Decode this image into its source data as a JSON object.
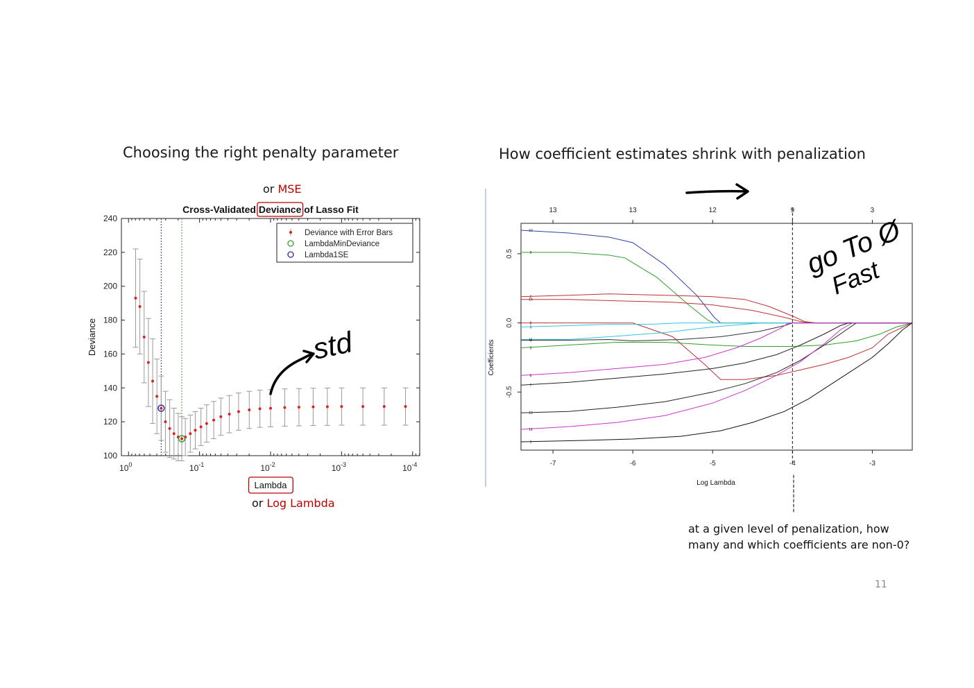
{
  "slide": {
    "left_heading": "Choosing the right penalty parameter",
    "right_heading": "How coefficient estimates shrink with penalization",
    "or_mse_prefix": "or ",
    "or_mse_word": "MSE",
    "or_loglambda_prefix": "or ",
    "or_loglambda_word": "Log Lambda",
    "note_line1": "at a given level of penalization, how",
    "note_line2": "many and which coefficients are non-0?",
    "page_number": "11",
    "handwriting": {
      "left": "std",
      "right_line1": "go To Ø",
      "right_line2": "Fast"
    },
    "colors": {
      "accent_red": "#c00000",
      "error_bar": "#999999",
      "points": "#e02020",
      "lambda_min_line": "#2e9e2e",
      "lambda_1se_line": "#2a2aa8"
    }
  },
  "chart_data": [
    {
      "type": "line",
      "title": "Cross-Validated Deviance of Lasso Fit",
      "title_parts": [
        "Cross-Validated ",
        "Deviance",
        " of Lasso Fit"
      ],
      "xlabel": "Lambda",
      "ylabel": "Deviance",
      "x_scale": "log-reversed",
      "xlim_log10": [
        0.1,
        -4.1
      ],
      "ylim": [
        100,
        240
      ],
      "yticks": [
        100,
        120,
        140,
        160,
        180,
        200,
        220,
        240
      ],
      "xticks": [
        {
          "exp": 0,
          "base": "10",
          "sup": "0"
        },
        {
          "exp": -1,
          "base": "10",
          "sup": "-1"
        },
        {
          "exp": -2,
          "base": "10",
          "sup": "-2"
        },
        {
          "exp": -3,
          "base": "10",
          "sup": "-3"
        },
        {
          "exp": -4,
          "base": "10",
          "sup": "-4"
        }
      ],
      "legend": [
        "Deviance with Error Bars",
        "LambdaMinDeviance",
        "Lambda1SE"
      ],
      "legend_position": "top-right",
      "lambda_min_log10": -0.75,
      "lambda_1se_log10": -0.46,
      "series": [
        {
          "name": "Deviance with Error Bars",
          "x_log10": [
            -0.1,
            -0.16,
            -0.22,
            -0.28,
            -0.34,
            -0.4,
            -0.46,
            -0.52,
            -0.58,
            -0.64,
            -0.7,
            -0.75,
            -0.8,
            -0.87,
            -0.94,
            -1.02,
            -1.1,
            -1.2,
            -1.3,
            -1.42,
            -1.55,
            -1.7,
            -1.85,
            -2.0,
            -2.2,
            -2.4,
            -2.6,
            -2.8,
            -3.0,
            -3.3,
            -3.6,
            -3.9
          ],
          "values": [
            193,
            188,
            170,
            155,
            144,
            135,
            128,
            120,
            116,
            113,
            111,
            110,
            111,
            113,
            115,
            117,
            119,
            121,
            123,
            124.5,
            126,
            127,
            127.7,
            128,
            128.4,
            128.6,
            128.8,
            128.9,
            129,
            129,
            129,
            129
          ],
          "error": [
            29,
            28,
            27,
            26,
            25,
            22,
            19,
            18,
            17,
            15,
            14,
            13,
            11,
            11,
            11,
            11,
            11,
            11,
            11,
            11,
            11,
            11,
            11,
            11,
            11,
            11,
            11,
            11,
            11,
            11,
            11,
            11
          ]
        }
      ]
    },
    {
      "type": "line",
      "title": "",
      "xlabel": "Log Lambda",
      "ylabel": "Coefficients",
      "xlim": [
        -7.4,
        -2.5
      ],
      "ylim": [
        -0.92,
        0.72
      ],
      "xticks": [
        -7,
        -6,
        -5,
        -4,
        -3
      ],
      "yticks": [
        -0.5,
        0.0,
        0.5
      ],
      "top_axis_ticks": [
        {
          "x": -7,
          "label": "13"
        },
        {
          "x": -6,
          "label": "13"
        },
        {
          "x": -5,
          "label": "12"
        },
        {
          "x": -4,
          "label": "9"
        },
        {
          "x": -3,
          "label": "3"
        }
      ],
      "vline_x": -4,
      "series": [
        {
          "label": "10",
          "color": "#2a3fa8",
          "x": [
            -7.4,
            -6.8,
            -6.3,
            -6.0,
            -5.6,
            -5.2,
            -4.98,
            -4.9,
            -2.5
          ],
          "values": [
            0.67,
            0.65,
            0.62,
            0.58,
            0.42,
            0.2,
            0.04,
            0.0,
            0.0
          ]
        },
        {
          "label": "9",
          "color": "#2aa02a",
          "x": [
            -7.4,
            -6.8,
            -6.3,
            -6.1,
            -5.7,
            -5.3,
            -5.06,
            -4.98,
            -2.5
          ],
          "values": [
            0.51,
            0.51,
            0.49,
            0.47,
            0.33,
            0.13,
            0.02,
            0.0,
            0.0
          ]
        },
        {
          "label": "2",
          "color": "#c03030",
          "x": [
            -7.4,
            -6.8,
            -6.3,
            -5.6,
            -5.0,
            -4.6,
            -4.3,
            -4.0,
            -3.85,
            -3.7,
            -2.5
          ],
          "values": [
            0.19,
            0.2,
            0.21,
            0.2,
            0.19,
            0.17,
            0.12,
            0.05,
            0.01,
            0.0,
            0.0
          ]
        },
        {
          "label": "14",
          "color": "#c03030",
          "x": [
            -7.4,
            -6.8,
            -6.2,
            -5.5,
            -5.0,
            -4.5,
            -4.1,
            -3.9,
            -3.75,
            -2.5
          ],
          "values": [
            0.17,
            0.17,
            0.16,
            0.15,
            0.13,
            0.09,
            0.04,
            0.01,
            0.0,
            0.0
          ]
        },
        {
          "label": "8",
          "color": "#c03030",
          "x": [
            -7.4,
            -6.6,
            -6.0,
            -5.5,
            -5.1,
            -4.9,
            -4.6,
            -4.2,
            -3.9,
            -3.6,
            -3.3,
            -3.0,
            -2.8,
            -2.5
          ],
          "values": [
            0.0,
            0.0,
            0.0,
            -0.1,
            -0.3,
            -0.41,
            -0.41,
            -0.38,
            -0.34,
            -0.3,
            -0.25,
            -0.18,
            -0.08,
            0.0
          ]
        },
        {
          "label": "3",
          "color": "#2ec8e0",
          "x": [
            -7.4,
            -6.8,
            -6.3,
            -5.8,
            -5.4,
            -5.2,
            -2.5
          ],
          "values": [
            -0.03,
            -0.02,
            -0.01,
            -0.01,
            0.0,
            0.0,
            0.0
          ]
        },
        {
          "label": "15",
          "color": "#2ec8e0",
          "x": [
            -7.4,
            -6.8,
            -6.3,
            -5.6,
            -5.0,
            -4.6,
            -4.4,
            -2.5
          ],
          "values": [
            -0.12,
            -0.12,
            -0.1,
            -0.07,
            -0.03,
            -0.01,
            0.0,
            0.0
          ]
        },
        {
          "label": "4",
          "color": "#333333",
          "x": [
            -7.4,
            -6.8,
            -6.3,
            -6.0,
            -5.4,
            -4.9,
            -4.4,
            -4.1,
            -4.0,
            -2.5
          ],
          "values": [
            -0.125,
            -0.125,
            -0.12,
            -0.13,
            -0.12,
            -0.1,
            -0.06,
            -0.02,
            0.0,
            0.0
          ]
        },
        {
          "label": "3",
          "color": "#2aa02a",
          "x": [
            -7.4,
            -6.8,
            -6.2,
            -5.6,
            -5.0,
            -4.6,
            -4.0,
            -3.6,
            -3.2,
            -2.9,
            -2.7,
            -2.5
          ],
          "values": [
            -0.18,
            -0.16,
            -0.14,
            -0.14,
            -0.16,
            -0.17,
            -0.17,
            -0.16,
            -0.13,
            -0.08,
            -0.03,
            0.0
          ]
        },
        {
          "label": "6",
          "color": "#cc33cc",
          "x": [
            -7.4,
            -6.8,
            -6.2,
            -5.6,
            -5.1,
            -4.7,
            -4.4,
            -4.15,
            -4.05,
            -2.5
          ],
          "values": [
            -0.38,
            -0.36,
            -0.33,
            -0.3,
            -0.25,
            -0.18,
            -0.11,
            -0.04,
            0.0,
            0.0
          ]
        },
        {
          "label": "7",
          "color": "#222222",
          "x": [
            -7.4,
            -6.8,
            -6.2,
            -5.6,
            -5.0,
            -4.6,
            -4.2,
            -3.9,
            -3.6,
            -3.4,
            -3.3,
            -2.5
          ],
          "values": [
            -0.45,
            -0.43,
            -0.4,
            -0.37,
            -0.33,
            -0.29,
            -0.23,
            -0.16,
            -0.08,
            -0.02,
            0.0,
            0.0
          ]
        },
        {
          "label": "13",
          "color": "#222222",
          "x": [
            -7.4,
            -6.8,
            -6.2,
            -5.6,
            -5.0,
            -4.6,
            -4.2,
            -3.9,
            -3.6,
            -3.35,
            -3.2,
            -2.5
          ],
          "values": [
            -0.65,
            -0.64,
            -0.61,
            -0.57,
            -0.5,
            -0.44,
            -0.36,
            -0.27,
            -0.16,
            -0.06,
            0.0,
            0.0
          ]
        },
        {
          "label": "12",
          "color": "#cc33cc",
          "x": [
            -7.4,
            -6.8,
            -6.2,
            -5.6,
            -5.0,
            -4.6,
            -4.2,
            -3.9,
            -3.6,
            -3.4,
            -3.25,
            -2.5
          ],
          "values": [
            -0.77,
            -0.75,
            -0.72,
            -0.67,
            -0.58,
            -0.49,
            -0.38,
            -0.28,
            -0.15,
            -0.05,
            0.0,
            0.0
          ]
        },
        {
          "label": "1",
          "color": "#111111",
          "x": [
            -7.4,
            -6.6,
            -6.0,
            -5.4,
            -4.9,
            -4.5,
            -4.1,
            -3.8,
            -3.4,
            -3.0,
            -2.8,
            -2.62,
            -2.5
          ],
          "values": [
            -0.86,
            -0.85,
            -0.84,
            -0.82,
            -0.78,
            -0.72,
            -0.64,
            -0.55,
            -0.4,
            -0.25,
            -0.15,
            -0.05,
            0.0
          ]
        }
      ]
    }
  ]
}
